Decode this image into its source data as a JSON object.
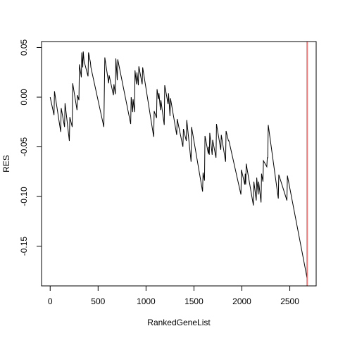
{
  "chart_data": {
    "type": "line",
    "title": "",
    "xlabel": "RankedGeneList",
    "ylabel": "RES",
    "xlim": [
      -90,
      2775
    ],
    "ylim": [
      -0.19,
      0.056
    ],
    "x_ticks": [
      0,
      500,
      1000,
      1500,
      2000,
      2500
    ],
    "x_tick_labels": [
      "0",
      "500",
      "1000",
      "1500",
      "2000",
      "2500"
    ],
    "y_ticks": [
      0.05,
      0.0,
      -0.05,
      -0.1,
      -0.15
    ],
    "y_tick_labels": [
      "0.05",
      "0.00",
      "-0.05",
      "-0.10",
      "-0.15"
    ],
    "grid": false,
    "line_color": "#000000",
    "vline": {
      "x": 2680,
      "color": "#ff0000"
    },
    "series": [
      {
        "x": [
          0,
          40,
          45,
          110,
          115,
          150,
          155,
          200,
          205,
          230,
          235,
          280,
          285,
          300,
          305,
          325,
          330,
          340,
          345,
          355,
          360,
          395,
          400,
          420,
          425,
          560,
          570,
          610,
          615,
          660,
          665,
          680,
          685,
          700,
          705,
          840,
          845,
          860,
          865,
          880,
          885,
          900,
          905,
          920,
          925,
          960,
          965,
          1080,
          1085,
          1110,
          1115,
          1130,
          1135,
          1150,
          1155,
          1190,
          1195,
          1230,
          1235,
          1250,
          1255,
          1320,
          1325,
          1385,
          1390,
          1420,
          1425,
          1470,
          1475,
          1590,
          1595,
          1610,
          1615,
          1650,
          1655,
          1660,
          1665,
          1690,
          1695,
          1730,
          1735,
          1780,
          1785,
          1830,
          1835,
          1860,
          1865,
          1990,
          1995,
          2030,
          2035,
          2040,
          2045,
          2120,
          2125,
          2150,
          2155,
          2170,
          2175,
          2200,
          2205,
          2220,
          2225,
          2260,
          2265,
          2270,
          2275,
          2380,
          2385,
          2470,
          2475,
          2680
        ],
        "y": [
          0.0,
          -0.018,
          0.006,
          -0.035,
          -0.011,
          -0.03,
          -0.006,
          -0.044,
          -0.02,
          -0.03,
          0.014,
          -0.013,
          0.002,
          -0.003,
          0.033,
          0.02,
          0.045,
          0.03,
          0.046,
          0.035,
          0.034,
          0.021,
          0.045,
          0.035,
          0.03,
          -0.03,
          0.04,
          0.014,
          0.022,
          0.002,
          0.013,
          0.003,
          0.039,
          0.017,
          0.038,
          -0.027,
          0.0,
          -0.015,
          -0.002,
          -0.015,
          0.027,
          0.013,
          0.025,
          0.012,
          0.031,
          0.013,
          0.03,
          -0.04,
          -0.014,
          -0.021,
          0.008,
          -0.002,
          0.004,
          -0.013,
          -0.003,
          -0.028,
          0.012,
          -0.007,
          0.004,
          -0.019,
          -0.001,
          -0.038,
          -0.022,
          -0.05,
          -0.032,
          -0.044,
          -0.023,
          -0.065,
          -0.03,
          -0.095,
          -0.076,
          -0.084,
          -0.039,
          -0.057,
          -0.05,
          -0.058,
          -0.036,
          -0.058,
          -0.043,
          -0.061,
          -0.027,
          -0.053,
          -0.038,
          -0.065,
          -0.034,
          -0.044,
          -0.044,
          -0.098,
          -0.073,
          -0.088,
          -0.077,
          -0.088,
          -0.067,
          -0.109,
          -0.085,
          -0.104,
          -0.081,
          -0.098,
          -0.085,
          -0.106,
          -0.077,
          -0.085,
          -0.064,
          -0.07,
          -0.061,
          -0.061,
          -0.028,
          -0.102,
          -0.078,
          -0.104,
          -0.079,
          -0.182
        ]
      }
    ]
  }
}
